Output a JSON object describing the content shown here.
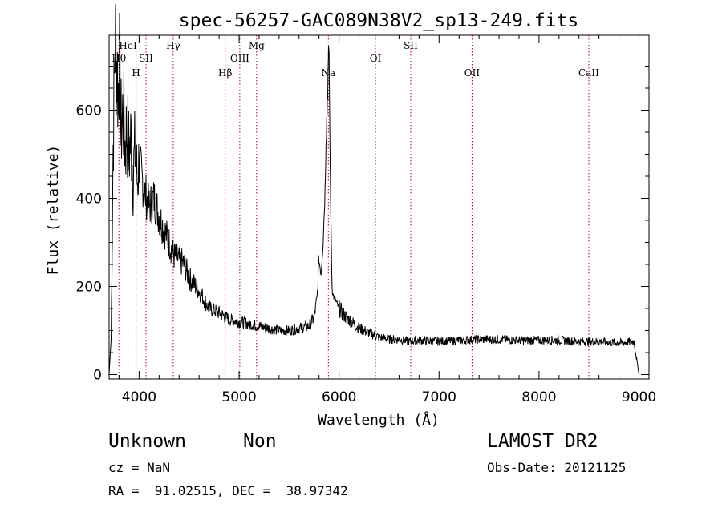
{
  "chart_data": {
    "type": "line",
    "title": "spec-56257-GAC089N38V2_sp13-249.fits",
    "xlabel": "Wavelength (Å)",
    "ylabel": "Flux (relative)",
    "xlim": [
      3700,
      9100
    ],
    "ylim": [
      -10,
      770
    ],
    "xticks": [
      4000,
      5000,
      6000,
      7000,
      8000,
      9000
    ],
    "yticks": [
      0,
      200,
      400,
      600
    ],
    "grid": false,
    "series": [
      {
        "x": [
          3700,
          3720,
          3740,
          3760,
          3780,
          3790,
          3800,
          3820,
          3840,
          3860,
          3880,
          3900,
          3920,
          3940,
          3960,
          3980,
          4000,
          4050,
          4100,
          4150,
          4200,
          4250,
          4300,
          4350,
          4400,
          4450,
          4500,
          4600,
          4700,
          4800,
          4900,
          5000,
          5100,
          5200,
          5300,
          5400,
          5500,
          5600,
          5700,
          5750,
          5780,
          5800,
          5820,
          5840,
          5860,
          5870,
          5880,
          5890,
          5895,
          5900,
          5905,
          5910,
          5920,
          5930,
          5940,
          5960,
          5980,
          6000,
          6050,
          6100,
          6200,
          6300,
          6400,
          6500,
          6600,
          6700,
          6800,
          7000,
          7200,
          7400,
          7600,
          7800,
          8000,
          8200,
          8400,
          8600,
          8800,
          8950,
          9000
        ],
        "y": [
          0,
          80,
          520,
          760,
          700,
          640,
          720,
          560,
          600,
          520,
          560,
          500,
          540,
          450,
          510,
          440,
          480,
          420,
          380,
          400,
          360,
          330,
          300,
          270,
          260,
          250,
          220,
          190,
          150,
          140,
          125,
          120,
          115,
          110,
          105,
          100,
          100,
          105,
          110,
          130,
          170,
          260,
          230,
          300,
          420,
          540,
          600,
          680,
          720,
          700,
          620,
          500,
          320,
          200,
          180,
          170,
          160,
          150,
          135,
          125,
          105,
          95,
          85,
          80,
          80,
          75,
          78,
          75,
          78,
          80,
          80,
          78,
          78,
          78,
          75,
          75,
          72,
          75,
          0
        ]
      }
    ],
    "line_color": "#000000",
    "annotation_color": "#b0000c",
    "lines": [
      {
        "label": "Hθ",
        "x": 3798,
        "row": 2
      },
      {
        "label": "HeI",
        "x": 3889,
        "row": 1
      },
      {
        "label": "H",
        "x": 3970,
        "row": 3
      },
      {
        "label": "SII",
        "x": 4069,
        "row": 2
      },
      {
        "label": "Hγ",
        "x": 4341,
        "row": 1
      },
      {
        "label": "Hβ",
        "x": 4861,
        "row": 3
      },
      {
        "label": "OIII",
        "x": 5007,
        "row": 2
      },
      {
        "label": "Mg",
        "x": 5175,
        "row": 1
      },
      {
        "label": "Na",
        "x": 5893,
        "row": 3
      },
      {
        "label": "OI",
        "x": 6364,
        "row": 2
      },
      {
        "label": "SII",
        "x": 6717,
        "row": 1
      },
      {
        "label": "OII",
        "x": 7330,
        "row": 3
      },
      {
        "label": "CaII",
        "x": 8498,
        "row": 3
      }
    ]
  },
  "info": {
    "object_class": "Unknown",
    "object_subclass": "Non",
    "survey": "LAMOST DR2",
    "cz": "cz = NaN",
    "obs_date": "Obs-Date: 20121125",
    "coords": "RA =  91.02515, DEC =  38.97342"
  }
}
